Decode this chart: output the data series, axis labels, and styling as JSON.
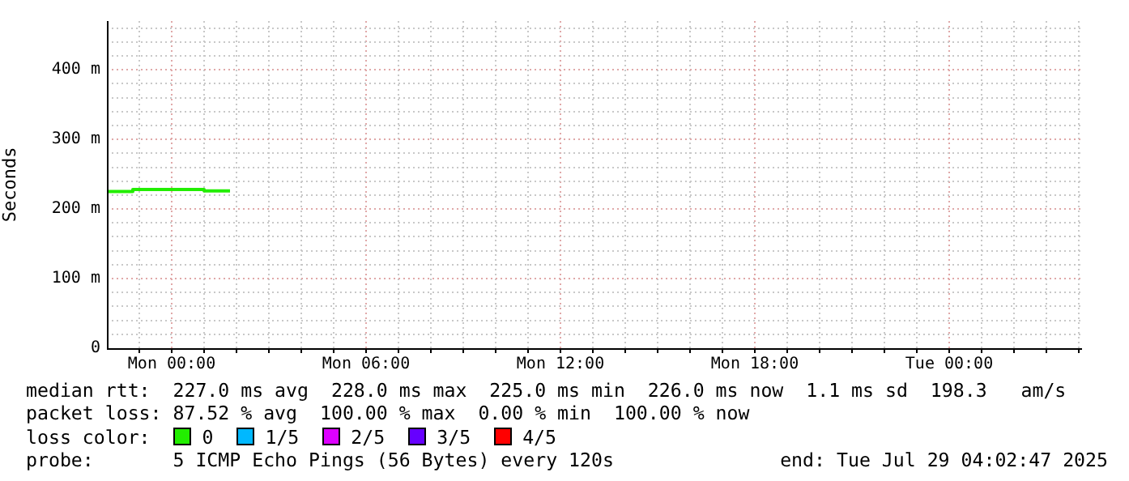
{
  "chart_data": {
    "type": "step",
    "ylabel": "Seconds",
    "legend_title": "loss color:",
    "legend": "bottom",
    "grid": true,
    "x": [
      "2025-07-27T22:00",
      "2025-07-27T22:48",
      "2025-07-28T01:00",
      "2025-07-28T01:48"
    ],
    "xlim": [
      "2025-07-27T22:00",
      "2025-07-29T04:06"
    ],
    "xticks": [
      {
        "value": "2025-07-27T23:00",
        "label": null
      },
      {
        "value": "2025-07-28T00:00",
        "label": "Mon 00:00"
      },
      {
        "value": "2025-07-28T01:00",
        "label": null
      },
      {
        "value": "2025-07-28T02:00",
        "label": null
      },
      {
        "value": "2025-07-28T03:00",
        "label": null
      },
      {
        "value": "2025-07-28T04:00",
        "label": null
      },
      {
        "value": "2025-07-28T05:00",
        "label": null
      },
      {
        "value": "2025-07-28T06:00",
        "label": "Mon 06:00"
      },
      {
        "value": "2025-07-28T07:00",
        "label": null
      },
      {
        "value": "2025-07-28T08:00",
        "label": null
      },
      {
        "value": "2025-07-28T09:00",
        "label": null
      },
      {
        "value": "2025-07-28T10:00",
        "label": null
      },
      {
        "value": "2025-07-28T11:00",
        "label": null
      },
      {
        "value": "2025-07-28T12:00",
        "label": "Mon 12:00"
      },
      {
        "value": "2025-07-28T13:00",
        "label": null
      },
      {
        "value": "2025-07-28T14:00",
        "label": null
      },
      {
        "value": "2025-07-28T15:00",
        "label": null
      },
      {
        "value": "2025-07-28T16:00",
        "label": null
      },
      {
        "value": "2025-07-28T17:00",
        "label": null
      },
      {
        "value": "2025-07-28T18:00",
        "label": "Mon 18:00"
      },
      {
        "value": "2025-07-28T19:00",
        "label": null
      },
      {
        "value": "2025-07-28T20:00",
        "label": null
      },
      {
        "value": "2025-07-28T21:00",
        "label": null
      },
      {
        "value": "2025-07-28T22:00",
        "label": null
      },
      {
        "value": "2025-07-28T23:00",
        "label": null
      },
      {
        "value": "2025-07-29T00:00",
        "label": "Tue 00:00"
      },
      {
        "value": "2025-07-29T01:00",
        "label": null
      },
      {
        "value": "2025-07-29T02:00",
        "label": null
      },
      {
        "value": "2025-07-29T03:00",
        "label": null
      },
      {
        "value": "2025-07-29T04:00",
        "label": null
      }
    ],
    "ylim": [
      0,
      470
    ],
    "yticks": [
      0,
      {
        "value": 20,
        "label": null
      },
      {
        "value": 40,
        "label": null
      },
      {
        "value": 60,
        "label": null
      },
      {
        "value": 80,
        "label": null
      },
      {
        "value": 100,
        "label": "100 m"
      },
      {
        "value": 120,
        "label": null
      },
      {
        "value": 140,
        "label": null
      },
      {
        "value": 160,
        "label": null
      },
      {
        "value": 180,
        "label": null
      },
      {
        "value": 200,
        "label": "200 m"
      },
      {
        "value": 220,
        "label": null
      },
      {
        "value": 240,
        "label": null
      },
      {
        "value": 260,
        "label": null
      },
      {
        "value": 280,
        "label": null
      },
      {
        "value": 300,
        "label": "300 m"
      },
      {
        "value": 320,
        "label": null
      },
      {
        "value": 340,
        "label": null
      },
      {
        "value": 360,
        "label": null
      },
      {
        "value": 380,
        "label": null
      },
      {
        "value": 400,
        "label": "400 m"
      },
      {
        "value": 420,
        "label": null
      },
      {
        "value": 440,
        "label": null
      },
      {
        "value": 460,
        "label": null
      }
    ],
    "series": [
      {
        "name": "0",
        "color": "#22ee00",
        "values": [
          225,
          228,
          226,
          226
        ]
      },
      {
        "name": "1/5",
        "color": "#00b8ff",
        "values": [
          null,
          null,
          null,
          null
        ]
      },
      {
        "name": "2/5",
        "color": "#dd00ff",
        "values": [
          null,
          null,
          null,
          null
        ]
      },
      {
        "name": "3/5",
        "color": "#6600ff",
        "values": [
          null,
          null,
          null,
          null
        ]
      },
      {
        "name": "4/5",
        "color": "#ff0000",
        "values": [
          null,
          null,
          null,
          null
        ]
      }
    ],
    "annotations": [
      "median rtt:  227.0 ms avg  228.0 ms max  225.0 ms min  226.0 ms now  1.1 ms sd  198.3   am/s",
      "packet loss: 87.52 % avg  100.00 % max  0.00 % min  100.00 % now",
      "probe:       5 ICMP Echo Pings (56 Bytes) every 120s",
      "end: Tue Jul 29 04:02:47 2025"
    ]
  }
}
